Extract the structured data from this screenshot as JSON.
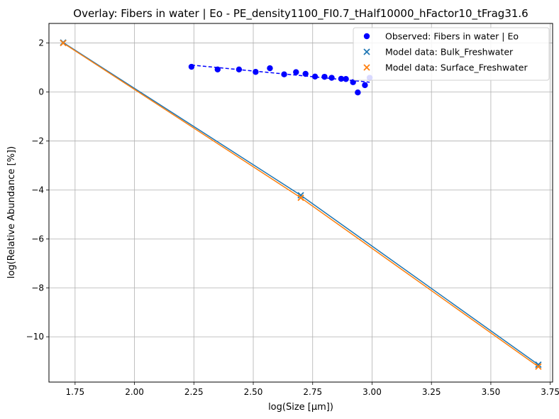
{
  "chart_data": {
    "type": "scatter",
    "title": "Overlay: Fibers in water | Eo - PE_density1100_FI0.7_tHalf10000_hFactor10_tFrag31.6",
    "xlabel": "log(Size [µm])",
    "ylabel": "log(Relative Abundance [%])",
    "xlim": [
      1.64,
      3.76
    ],
    "ylim": [
      -11.85,
      2.8
    ],
    "xticks": [
      1.75,
      2.0,
      2.25,
      2.5,
      2.75,
      3.0,
      3.25,
      3.5,
      3.75
    ],
    "xtick_labels": [
      "1.75",
      "2.00",
      "2.25",
      "2.50",
      "2.75",
      "3.00",
      "3.25",
      "3.50",
      "3.75"
    ],
    "yticks": [
      -10,
      -8,
      -6,
      -4,
      -2,
      0,
      2
    ],
    "ytick_labels": [
      "−10",
      "−8",
      "−6",
      "−4",
      "−2",
      "0",
      "2"
    ],
    "grid": true,
    "legend_position": "top-right",
    "series": [
      {
        "name": "Observed: Fibers in water | Eo",
        "kind": "scatter-circle",
        "color": "#0000ff",
        "x": [
          2.24,
          2.35,
          2.44,
          2.51,
          2.57,
          2.63,
          2.68,
          2.72,
          2.76,
          2.8,
          2.83,
          2.87,
          2.89,
          2.92,
          2.94,
          2.97,
          2.99
        ],
        "y": [
          1.03,
          0.92,
          0.92,
          0.82,
          0.97,
          0.72,
          0.81,
          0.74,
          0.63,
          0.62,
          0.58,
          0.54,
          0.53,
          0.4,
          -0.02,
          0.28,
          0.58
        ]
      },
      {
        "name": "",
        "kind": "dashed-fit",
        "color": "#0000ff",
        "x": [
          2.24,
          2.99
        ],
        "y": [
          1.1,
          0.4
        ]
      },
      {
        "name": "Model data: Bulk_Freshwater",
        "kind": "scatter-x-line",
        "color": "#1f77b4",
        "x": [
          1.7,
          2.7,
          3.7
        ],
        "y": [
          2.02,
          -4.22,
          -11.14
        ]
      },
      {
        "name": "Model data: Surface_Freshwater",
        "kind": "scatter-x-line",
        "color": "#ff7f0e",
        "x": [
          1.7,
          2.7,
          3.7
        ],
        "y": [
          2.0,
          -4.32,
          -11.22
        ]
      }
    ]
  }
}
